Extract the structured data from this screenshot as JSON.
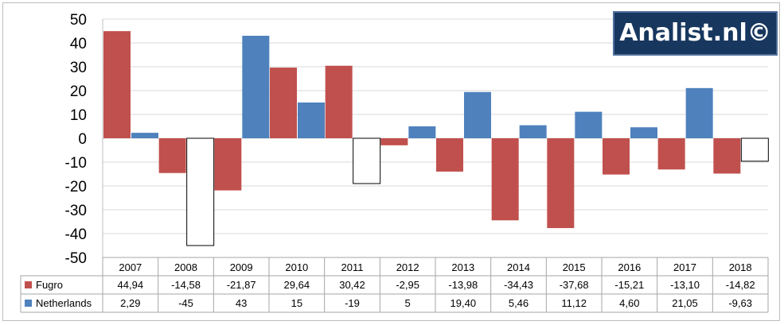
{
  "brand": {
    "text": "Analist.nl©",
    "background": "#17375e"
  },
  "chart_data": {
    "type": "bar",
    "categories": [
      "2007",
      "2008",
      "2009",
      "2010",
      "2011",
      "2012",
      "2013",
      "2014",
      "2015",
      "2016",
      "2017",
      "2018"
    ],
    "series": [
      {
        "name": "Fugro",
        "color": "#c0504d",
        "values": [
          44.94,
          -14.58,
          -21.87,
          29.64,
          30.42,
          -2.95,
          -13.98,
          -34.43,
          -37.68,
          -15.21,
          -13.1,
          -14.82
        ],
        "labels": [
          "44,94",
          "-14,58",
          "-21,87",
          "29,64",
          "30,42",
          "-2,95",
          "-13,98",
          "-34,43",
          "-37,68",
          "-15,21",
          "-13,10",
          "-14,82"
        ]
      },
      {
        "name": "Netherlands",
        "color": "#4f81bd",
        "negative_fill": "#ffffff",
        "values": [
          2.29,
          -45,
          43,
          15,
          -19,
          5,
          19.4,
          5.46,
          11.12,
          4.6,
          21.05,
          -9.63
        ],
        "labels": [
          "2,29",
          "-45",
          "43",
          "15",
          "-19",
          "5",
          "19,40",
          "5,46",
          "11,12",
          "4,60",
          "21,05",
          "-9,63"
        ]
      }
    ],
    "yticks": [
      "50",
      "40",
      "30",
      "20",
      "10",
      "0",
      "-10",
      "-20",
      "-30",
      "-40",
      "-50"
    ],
    "ylim": [
      -50,
      50
    ],
    "grid": true,
    "legend": "data-table"
  }
}
